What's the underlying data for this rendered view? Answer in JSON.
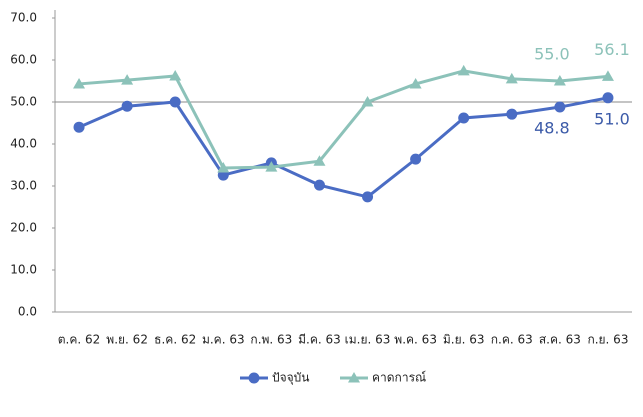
{
  "chart_data": {
    "type": "line",
    "categories": [
      "ต.ค. 62",
      "พ.ย. 62",
      "ธ.ค. 62",
      "ม.ค. 63",
      "ก.พ. 63",
      "มี.ค. 63",
      "เม.ย. 63",
      "พ.ค. 63",
      "มิ.ย. 63",
      "ก.ค. 63",
      "ส.ค. 63",
      "ก.ย. 63"
    ],
    "series": [
      {
        "name": "ปัจจุบัน",
        "color": "#4a6cc4",
        "marker": "circle",
        "values": [
          44.0,
          49.0,
          50.0,
          32.6,
          35.5,
          30.2,
          27.4,
          36.4,
          46.2,
          47.1,
          48.8,
          51.0
        ],
        "value_labels": [
          null,
          null,
          null,
          null,
          null,
          null,
          null,
          null,
          null,
          null,
          "48.8",
          "51.0"
        ]
      },
      {
        "name": "คาดการณ์",
        "color": "#8cc2b9",
        "marker": "triangle",
        "values": [
          54.3,
          55.2,
          56.2,
          34.3,
          34.5,
          35.9,
          50.0,
          54.3,
          57.4,
          55.5,
          55.0,
          56.1
        ],
        "value_labels": [
          null,
          null,
          null,
          null,
          null,
          null,
          null,
          null,
          null,
          null,
          "55.0",
          "56.1"
        ]
      }
    ],
    "ylim": [
      0,
      70
    ],
    "yticks": [
      {
        "value": 0,
        "label": "0.0"
      },
      {
        "value": 10,
        "label": "10.0"
      },
      {
        "value": 20,
        "label": "20.0"
      },
      {
        "value": 30,
        "label": "30.0"
      },
      {
        "value": 40,
        "label": "40.0"
      },
      {
        "value": 50,
        "label": "50.0"
      },
      {
        "value": 60,
        "label": "60.0"
      },
      {
        "value": 70,
        "label": "70.0"
      }
    ],
    "reference_line": 50,
    "legend": "bottom"
  }
}
